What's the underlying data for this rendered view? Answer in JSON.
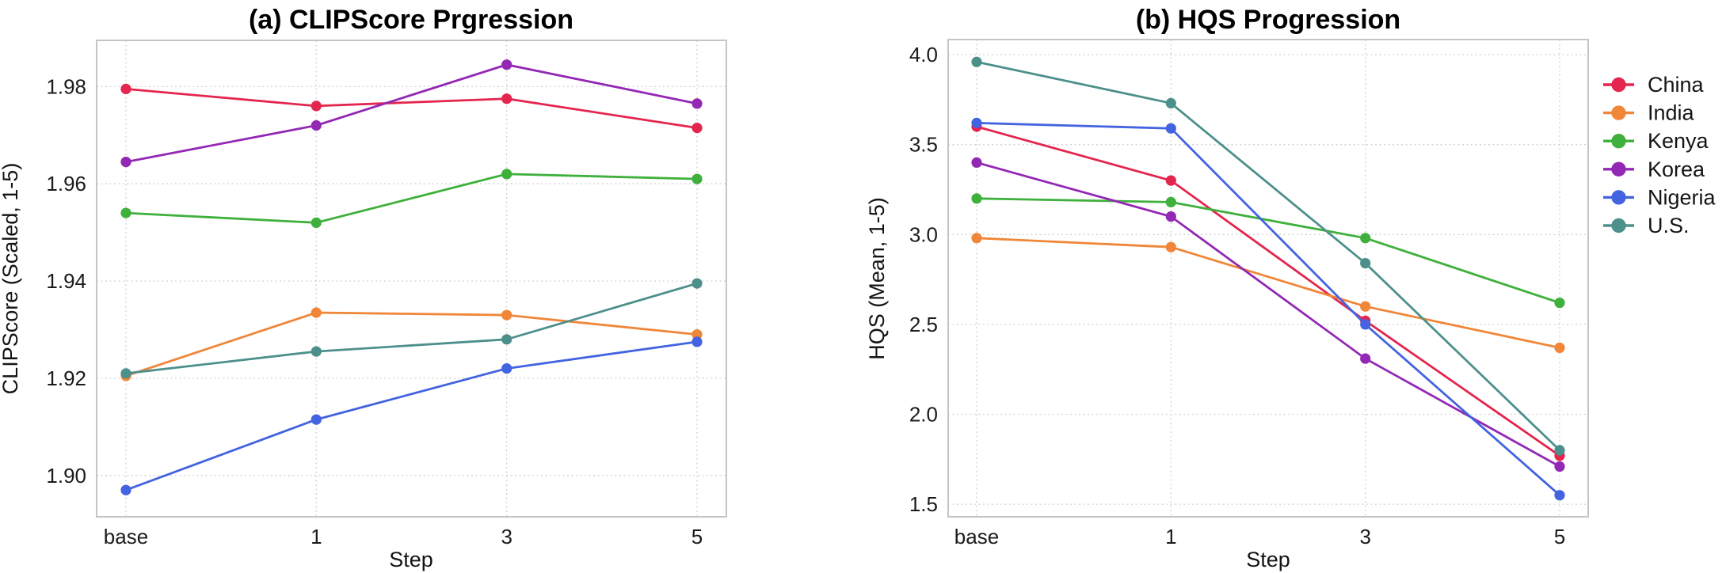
{
  "figure": {
    "background": "#ffffff",
    "legend_items": [
      "China",
      "India",
      "Kenya",
      "Korea",
      "Nigeria",
      "U.S."
    ]
  },
  "chart_data": [
    {
      "type": "line",
      "title": "(a) CLIPScore Prgression",
      "xlabel": "Step",
      "ylabel": "CLIPScore (Scaled, 1-5)",
      "categories": [
        "base",
        "1",
        "3",
        "5"
      ],
      "ylim": [
        1.8915,
        1.9895
      ],
      "yticks": [
        1.98,
        1.96,
        1.94,
        1.92,
        1.9
      ],
      "ytick_labels": [
        "1.98",
        "1.96",
        "1.94",
        "1.92",
        "1.90"
      ],
      "grid": true,
      "legend_position": "none",
      "series": [
        {
          "name": "China",
          "color": "#e4254e",
          "values": [
            1.9795,
            1.976,
            1.9775,
            1.9715
          ]
        },
        {
          "name": "India",
          "color": "#f08638",
          "values": [
            1.9205,
            1.9335,
            1.933,
            1.929
          ]
        },
        {
          "name": "Kenya",
          "color": "#3fb03c",
          "values": [
            1.954,
            1.952,
            1.962,
            1.961
          ]
        },
        {
          "name": "Korea",
          "color": "#9328b4",
          "values": [
            1.9645,
            1.972,
            1.9845,
            1.9765
          ]
        },
        {
          "name": "Nigeria",
          "color": "#4363e0",
          "values": [
            1.897,
            1.9115,
            1.922,
            1.9275
          ]
        },
        {
          "name": "U.S.",
          "color": "#4d908b",
          "values": [
            1.921,
            1.9255,
            1.928,
            1.9395
          ]
        }
      ]
    },
    {
      "type": "line",
      "title": "(b) HQS Progression",
      "xlabel": "Step",
      "ylabel": "HQS (Mean, 1-5)",
      "categories": [
        "base",
        "1",
        "3",
        "5"
      ],
      "ylim": [
        1.43,
        4.084
      ],
      "yticks": [
        4.0,
        3.5,
        3.0,
        2.5,
        2.0,
        1.5
      ],
      "ytick_labels": [
        "4.0",
        "3.5",
        "3.0",
        "2.5",
        "2.0",
        "1.5"
      ],
      "grid": true,
      "legend_position": "right",
      "series": [
        {
          "name": "China",
          "color": "#e4254e",
          "values": [
            3.6,
            3.3,
            2.52,
            1.77
          ]
        },
        {
          "name": "India",
          "color": "#f08638",
          "values": [
            2.98,
            2.93,
            2.6,
            2.37
          ]
        },
        {
          "name": "Kenya",
          "color": "#3fb03c",
          "values": [
            3.2,
            3.18,
            2.98,
            2.62
          ]
        },
        {
          "name": "Korea",
          "color": "#9328b4",
          "values": [
            3.4,
            3.1,
            2.31,
            1.71
          ]
        },
        {
          "name": "Nigeria",
          "color": "#4363e0",
          "values": [
            3.62,
            3.59,
            2.5,
            1.55
          ]
        },
        {
          "name": "U.S.",
          "color": "#4d908b",
          "values": [
            3.96,
            3.73,
            2.84,
            1.8
          ]
        }
      ]
    }
  ]
}
